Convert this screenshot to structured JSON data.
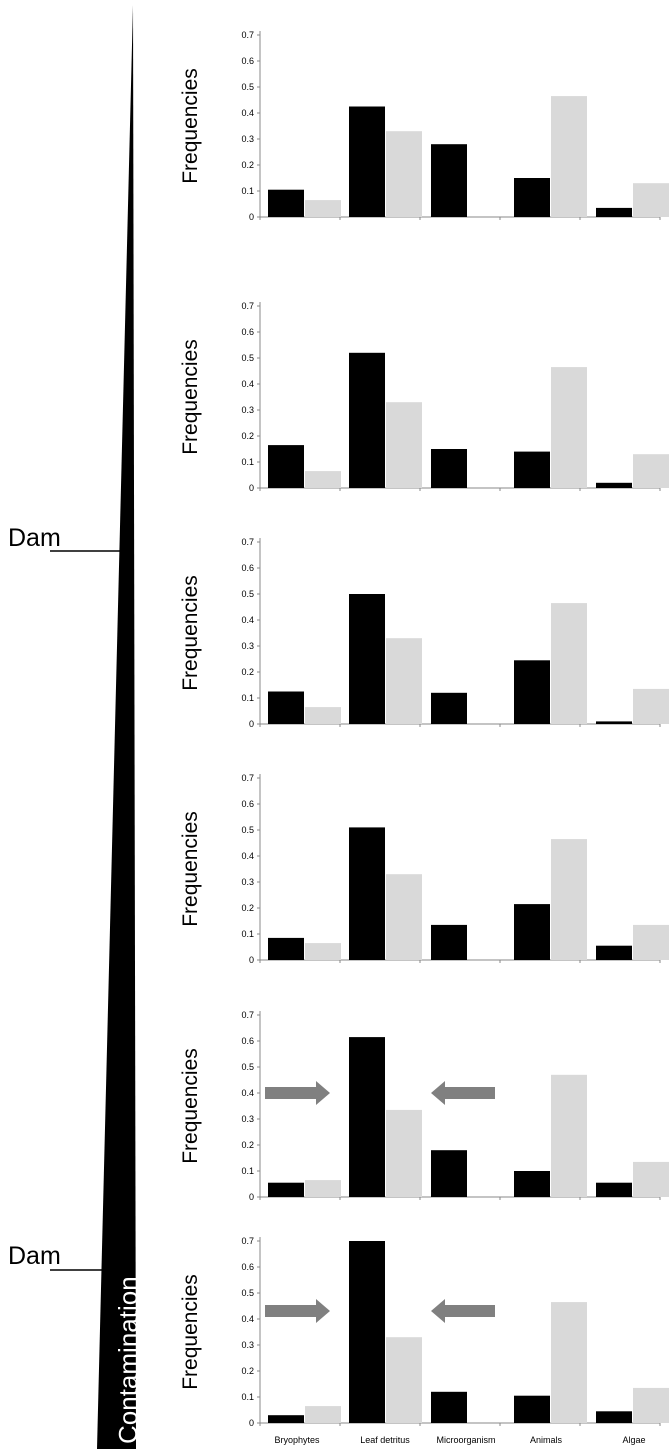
{
  "side_labels": {
    "dam_upper": "Dam",
    "dam_lower": "Dam",
    "gradient": "Contamination"
  },
  "colors": {
    "observed": "#000000",
    "expected": "#d9d9d9",
    "arrow": "#808080",
    "wedge": "#000000"
  },
  "chart_data": [
    {
      "type": "bar",
      "ylabel": "Frequencies",
      "ylim": [
        0,
        0.7
      ],
      "yticks": [
        "0",
        "0.1",
        "0.2",
        "0.3",
        "0.4",
        "0.5",
        "0.6",
        "0.7"
      ],
      "categories": [
        "Bryophytes",
        "Leaf detritus",
        "Microorganism",
        "Animals",
        "Algae"
      ],
      "show_xlabels": false,
      "arrows": false,
      "series": [
        {
          "values": [
            0.105,
            0.425,
            0.28,
            0.15,
            0.035
          ]
        },
        {
          "values": [
            0.065,
            0.33,
            0.0,
            0.465,
            0.13
          ]
        }
      ]
    },
    {
      "type": "bar",
      "ylabel": "Frequencies",
      "ylim": [
        0,
        0.7
      ],
      "yticks": [
        "0",
        "0.1",
        "0.2",
        "0.3",
        "0.4",
        "0.5",
        "0.6",
        "0.7"
      ],
      "categories": [
        "Bryophytes",
        "Leaf detritus",
        "Microorganism",
        "Animals",
        "Algae"
      ],
      "show_xlabels": false,
      "arrows": false,
      "series": [
        {
          "values": [
            0.165,
            0.52,
            0.15,
            0.14,
            0.02
          ]
        },
        {
          "values": [
            0.065,
            0.33,
            0.0,
            0.465,
            0.13
          ]
        }
      ]
    },
    {
      "type": "bar",
      "ylabel": "Frequencies",
      "ylim": [
        0,
        0.7
      ],
      "yticks": [
        "0",
        "0.1",
        "0.2",
        "0.3",
        "0.4",
        "0.5",
        "0.6",
        "0.7"
      ],
      "categories": [
        "Bryophytes",
        "Leaf detritus",
        "Microorganism",
        "Animals",
        "Algae"
      ],
      "show_xlabels": false,
      "arrows": false,
      "series": [
        {
          "values": [
            0.125,
            0.5,
            0.12,
            0.245,
            0.01
          ]
        },
        {
          "values": [
            0.065,
            0.33,
            0.0,
            0.465,
            0.135
          ]
        }
      ]
    },
    {
      "type": "bar",
      "ylabel": "Frequencies",
      "ylim": [
        0,
        0.7
      ],
      "yticks": [
        "0",
        "0.1",
        "0.2",
        "0.3",
        "0.4",
        "0.5",
        "0.6",
        "0.7"
      ],
      "categories": [
        "Bryophytes",
        "Leaf detritus",
        "Microorganism",
        "Animals",
        "Algae"
      ],
      "show_xlabels": false,
      "arrows": false,
      "series": [
        {
          "values": [
            0.085,
            0.51,
            0.135,
            0.215,
            0.055
          ]
        },
        {
          "values": [
            0.065,
            0.33,
            0.0,
            0.465,
            0.135
          ]
        }
      ]
    },
    {
      "type": "bar",
      "ylabel": "Frequencies",
      "ylim": [
        0,
        0.7
      ],
      "yticks": [
        "0",
        "0.1",
        "0.2",
        "0.3",
        "0.4",
        "0.5",
        "0.6",
        "0.7"
      ],
      "categories": [
        "Bryophytes",
        "Leaf detritus",
        "Microorganism",
        "Animals",
        "Algae"
      ],
      "show_xlabels": false,
      "arrows": true,
      "series": [
        {
          "values": [
            0.055,
            0.615,
            0.18,
            0.1,
            0.055
          ]
        },
        {
          "values": [
            0.065,
            0.335,
            0.0,
            0.47,
            0.135
          ]
        }
      ]
    },
    {
      "type": "bar",
      "ylabel": "Frequencies",
      "ylim": [
        0,
        0.7
      ],
      "yticks": [
        "0",
        "0.1",
        "0.2",
        "0.3",
        "0.4",
        "0.5",
        "0.6",
        "0.7"
      ],
      "categories": [
        "Bryophytes",
        "Leaf detritus",
        "Microorganism",
        "Animals",
        "Algae"
      ],
      "show_xlabels": true,
      "arrows": true,
      "series": [
        {
          "values": [
            0.03,
            0.7,
            0.12,
            0.105,
            0.045
          ]
        },
        {
          "values": [
            0.065,
            0.33,
            0.0,
            0.465,
            0.135
          ]
        }
      ]
    }
  ]
}
